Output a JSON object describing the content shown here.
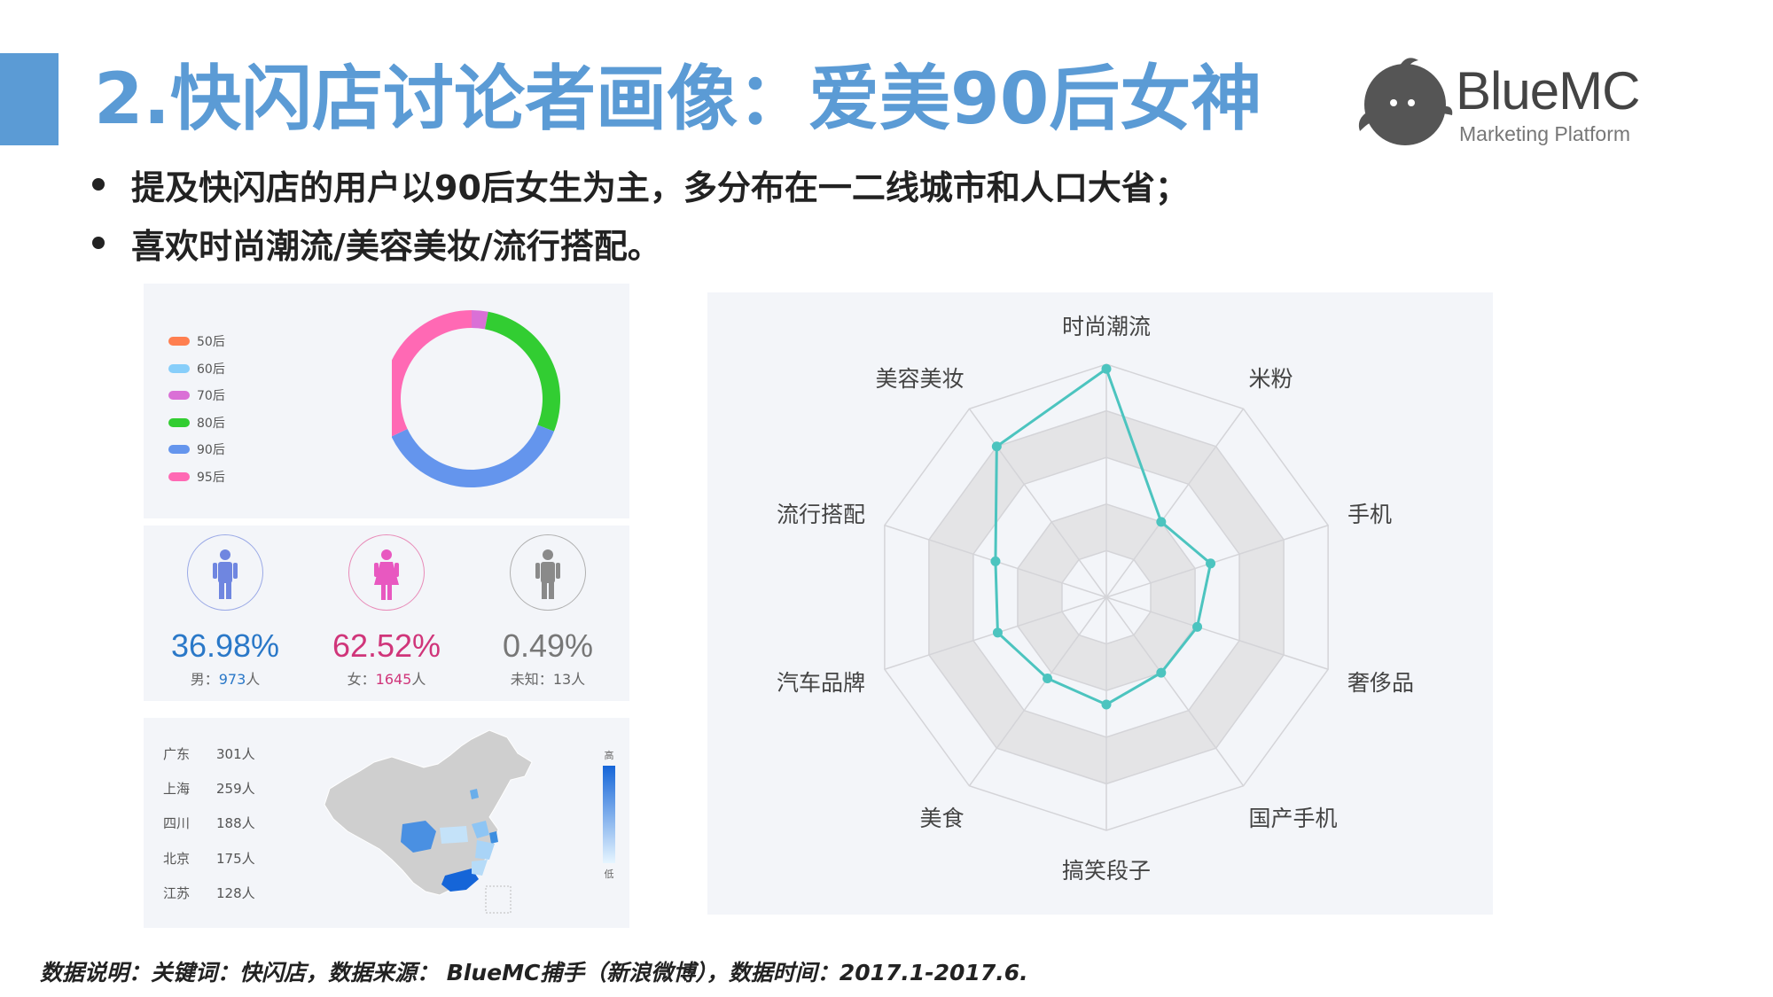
{
  "header": {
    "title": "2.快闪店讨论者画像：爱美90后女神",
    "logo_text": "BlueMC",
    "logo_sub": "Marketing Platform"
  },
  "bullets": [
    "提及快闪店的用户以90后女生为主，多分布在一二线城市和人口大省；",
    "喜欢时尚潮流/美容美妆/流行搭配。"
  ],
  "colors": {
    "accent": "#5b9bd5",
    "radar_line": "#4cc4bf"
  },
  "gender": [
    {
      "pct": "36.98%",
      "label": "男：",
      "count": "973",
      "unit": "人",
      "color": "#2a78c8",
      "icon": "male-person-icon"
    },
    {
      "pct": "62.52%",
      "label": "女：",
      "count": "1645",
      "unit": "人",
      "color": "#d0357a",
      "icon": "female-person-icon"
    },
    {
      "pct": "0.49%",
      "label": "未知：",
      "count": "13",
      "unit": "人",
      "color": "#777777",
      "icon": "unknown-person-icon"
    }
  ],
  "provinces": [
    {
      "name": "广东",
      "value": "301人"
    },
    {
      "name": "上海",
      "value": "259人"
    },
    {
      "name": "四川",
      "value": "188人"
    },
    {
      "name": "北京",
      "value": "175人"
    },
    {
      "name": "江苏",
      "value": "128人"
    }
  ],
  "map_scale": {
    "high": "高",
    "low": "低"
  },
  "footnote": "数据说明：关键词：快闪店，数据来源： BlueMC捕手（新浪微博），数据时间：2017.1-2017.6.",
  "chart_data": [
    {
      "type": "pie",
      "variant": "donut",
      "categories": [
        "50后",
        "60后",
        "70后",
        "80后",
        "90后",
        "95后"
      ],
      "values": [
        0,
        0,
        3,
        28,
        37,
        32
      ],
      "colors": [
        "#ff7f50",
        "#87cefa",
        "#da70d6",
        "#32cd32",
        "#6495ed",
        "#ff69b4"
      ],
      "legend": "left"
    },
    {
      "type": "radar",
      "categories": [
        "时尚潮流",
        "米粉",
        "手机",
        "奢侈品",
        "国产手机",
        "搞笑段子",
        "美食",
        "汽车品牌",
        "流行搭配",
        "美容美妆"
      ],
      "values": [
        0.98,
        0.4,
        0.47,
        0.41,
        0.4,
        0.46,
        0.43,
        0.49,
        0.5,
        0.8
      ],
      "range": [
        0,
        1
      ],
      "rings": 5
    }
  ]
}
